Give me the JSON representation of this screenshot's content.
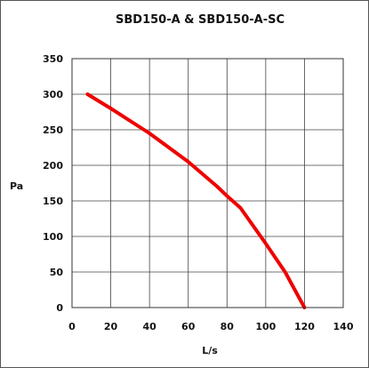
{
  "chart_data": {
    "type": "line",
    "title": "SBD150-A  &  SBD150-A-SC",
    "xlabel": "L/s",
    "ylabel": "Pa",
    "xlim": [
      0,
      140
    ],
    "ylim": [
      0,
      350
    ],
    "xticks": [
      0,
      20,
      40,
      60,
      80,
      100,
      120,
      140
    ],
    "yticks": [
      0,
      50,
      100,
      150,
      200,
      250,
      300,
      350
    ],
    "grid": true,
    "series": [
      {
        "color": "#ee0000",
        "x": [
          8,
          20,
          40,
          60,
          75,
          80,
          87,
          100,
          110,
          120
        ],
        "y": [
          300,
          280,
          245,
          205,
          170,
          157,
          140,
          90,
          50,
          0
        ]
      }
    ]
  }
}
